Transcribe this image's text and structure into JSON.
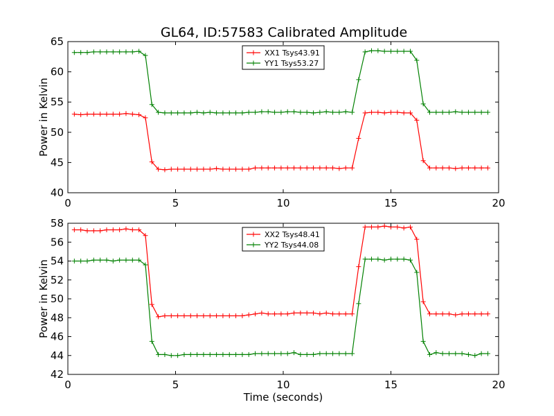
{
  "figure": {
    "title": "GL64, ID:57583 Calibrated Amplitude"
  },
  "chart_data": [
    {
      "type": "line",
      "title": "GL64, ID:57583 Calibrated Amplitude",
      "xlabel": "",
      "ylabel": "Power in Kelvin",
      "xlim": [
        0,
        20
      ],
      "ylim": [
        40,
        65
      ],
      "xticks": [
        0,
        5,
        10,
        15,
        20
      ],
      "yticks": [
        40,
        45,
        50,
        55,
        60,
        65
      ],
      "legend_position": "top-center",
      "grid": false,
      "x": [
        0.3,
        0.6,
        0.9,
        1.2,
        1.5,
        1.8,
        2.1,
        2.4,
        2.7,
        3.0,
        3.3,
        3.6,
        3.9,
        4.2,
        4.5,
        4.8,
        5.1,
        5.4,
        5.7,
        6.0,
        6.3,
        6.6,
        6.9,
        7.2,
        7.5,
        7.8,
        8.1,
        8.4,
        8.7,
        9.0,
        9.3,
        9.6,
        9.9,
        10.2,
        10.5,
        10.8,
        11.1,
        11.4,
        11.7,
        12.0,
        12.3,
        12.6,
        12.9,
        13.2,
        13.5,
        13.8,
        14.1,
        14.4,
        14.7,
        15.0,
        15.3,
        15.6,
        15.9,
        16.2,
        16.5,
        16.8,
        17.1,
        17.4,
        17.7,
        18.0,
        18.3,
        18.6,
        18.9,
        19.2,
        19.5
      ],
      "series": [
        {
          "name": "XX1 Tsys43.91",
          "color": "#ff0000",
          "values": [
            53.0,
            52.9,
            53.0,
            53.0,
            53.0,
            53.0,
            53.0,
            53.0,
            53.1,
            53.0,
            52.9,
            52.4,
            45.1,
            43.9,
            43.8,
            43.9,
            43.9,
            43.9,
            43.9,
            43.9,
            43.9,
            43.9,
            44.0,
            43.9,
            43.9,
            43.9,
            43.9,
            43.9,
            44.1,
            44.1,
            44.1,
            44.1,
            44.1,
            44.1,
            44.1,
            44.1,
            44.1,
            44.1,
            44.1,
            44.1,
            44.1,
            44.0,
            44.1,
            44.1,
            49.0,
            53.2,
            53.3,
            53.3,
            53.2,
            53.3,
            53.3,
            53.2,
            53.2,
            52.0,
            45.3,
            44.1,
            44.1,
            44.1,
            44.1,
            44.0,
            44.1,
            44.1,
            44.1,
            44.1,
            44.1
          ]
        },
        {
          "name": "YY1 Tsys53.27",
          "color": "#008000",
          "values": [
            63.2,
            63.2,
            63.2,
            63.3,
            63.3,
            63.3,
            63.3,
            63.3,
            63.3,
            63.3,
            63.4,
            62.7,
            54.6,
            53.3,
            53.2,
            53.2,
            53.2,
            53.2,
            53.2,
            53.3,
            53.2,
            53.3,
            53.2,
            53.2,
            53.2,
            53.2,
            53.2,
            53.3,
            53.3,
            53.4,
            53.4,
            53.3,
            53.3,
            53.4,
            53.4,
            53.3,
            53.3,
            53.2,
            53.3,
            53.4,
            53.3,
            53.3,
            53.4,
            53.3,
            58.7,
            63.3,
            63.5,
            63.5,
            63.4,
            63.4,
            63.4,
            63.4,
            63.4,
            61.9,
            54.7,
            53.3,
            53.3,
            53.3,
            53.3,
            53.4,
            53.3,
            53.3,
            53.3,
            53.3,
            53.3
          ]
        }
      ]
    },
    {
      "type": "line",
      "title": "",
      "xlabel": "Time (seconds)",
      "ylabel": "Power in Kelvin",
      "xlim": [
        0,
        20
      ],
      "ylim": [
        42,
        58
      ],
      "xticks": [
        0,
        5,
        10,
        15,
        20
      ],
      "yticks": [
        42,
        44,
        46,
        48,
        50,
        52,
        54,
        56,
        58
      ],
      "legend_position": "top-center",
      "grid": false,
      "x": [
        0.3,
        0.6,
        0.9,
        1.2,
        1.5,
        1.8,
        2.1,
        2.4,
        2.7,
        3.0,
        3.3,
        3.6,
        3.9,
        4.2,
        4.5,
        4.8,
        5.1,
        5.4,
        5.7,
        6.0,
        6.3,
        6.6,
        6.9,
        7.2,
        7.5,
        7.8,
        8.1,
        8.4,
        8.7,
        9.0,
        9.3,
        9.6,
        9.9,
        10.2,
        10.5,
        10.8,
        11.1,
        11.4,
        11.7,
        12.0,
        12.3,
        12.6,
        12.9,
        13.2,
        13.5,
        13.8,
        14.1,
        14.4,
        14.7,
        15.0,
        15.3,
        15.6,
        15.9,
        16.2,
        16.5,
        16.8,
        17.1,
        17.4,
        17.7,
        18.0,
        18.3,
        18.6,
        18.9,
        19.2,
        19.5
      ],
      "series": [
        {
          "name": "XX2 Tsys48.41",
          "color": "#ff0000",
          "values": [
            57.3,
            57.3,
            57.2,
            57.2,
            57.2,
            57.3,
            57.3,
            57.3,
            57.4,
            57.3,
            57.3,
            56.7,
            49.4,
            48.1,
            48.2,
            48.2,
            48.2,
            48.2,
            48.2,
            48.2,
            48.2,
            48.2,
            48.2,
            48.2,
            48.2,
            48.2,
            48.2,
            48.3,
            48.4,
            48.5,
            48.4,
            48.4,
            48.4,
            48.4,
            48.5,
            48.5,
            48.5,
            48.5,
            48.4,
            48.5,
            48.4,
            48.4,
            48.4,
            48.4,
            53.4,
            57.6,
            57.6,
            57.6,
            57.7,
            57.6,
            57.6,
            57.5,
            57.6,
            56.3,
            49.7,
            48.4,
            48.4,
            48.4,
            48.4,
            48.3,
            48.4,
            48.4,
            48.4,
            48.4,
            48.4
          ]
        },
        {
          "name": "YY2 Tsys44.08",
          "color": "#008000",
          "values": [
            54.0,
            54.0,
            54.0,
            54.1,
            54.1,
            54.1,
            54.0,
            54.1,
            54.1,
            54.1,
            54.1,
            53.6,
            45.5,
            44.1,
            44.1,
            44.0,
            44.0,
            44.1,
            44.1,
            44.1,
            44.1,
            44.1,
            44.1,
            44.1,
            44.1,
            44.1,
            44.1,
            44.1,
            44.2,
            44.2,
            44.2,
            44.2,
            44.2,
            44.2,
            44.3,
            44.1,
            44.1,
            44.1,
            44.2,
            44.2,
            44.2,
            44.2,
            44.2,
            44.2,
            49.5,
            54.2,
            54.2,
            54.2,
            54.1,
            54.2,
            54.2,
            54.2,
            54.1,
            52.8,
            45.5,
            44.1,
            44.3,
            44.2,
            44.2,
            44.2,
            44.2,
            44.1,
            44.0,
            44.2,
            44.2
          ]
        }
      ]
    }
  ]
}
